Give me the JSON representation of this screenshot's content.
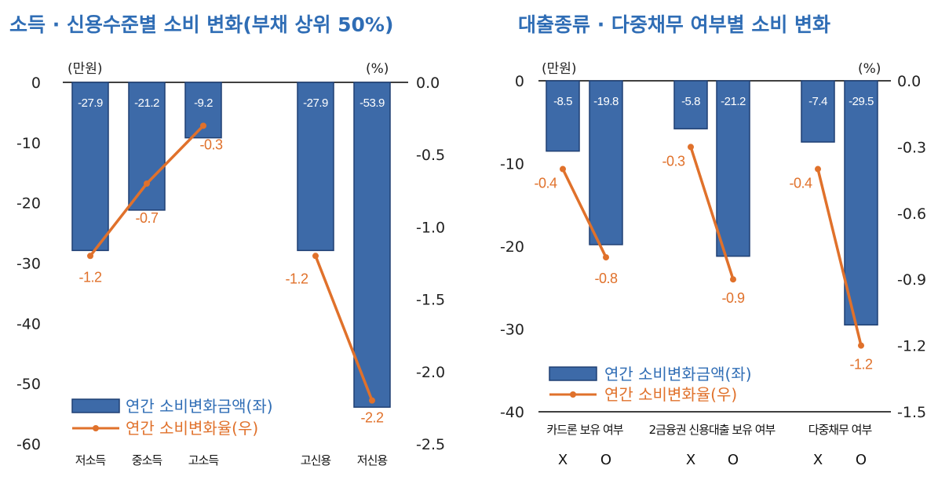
{
  "colors": {
    "bar": "#3d6aa8",
    "bar_stroke": "#1f3f73",
    "line": "#e0712b",
    "title": "#2f6db5"
  },
  "chart_data": [
    {
      "type": "bar+line",
      "title": "소득 · 신용수준별 소비 변화(부채 상위 50%)",
      "left_unit": "(만원)",
      "right_unit": "(%)",
      "left_ylim": [
        -60,
        0
      ],
      "left_ticks": [
        "0",
        "-10",
        "-20",
        "-30",
        "-40",
        "-50",
        "-60"
      ],
      "right_ylim": [
        -2.5,
        0.0
      ],
      "right_ticks": [
        "0.0",
        "-0.5",
        "-1.0",
        "-1.5",
        "-2.0",
        "-2.5"
      ],
      "categories": [
        "저소득",
        "중소득",
        "고소득",
        "고신용",
        "저신용"
      ],
      "series": [
        {
          "name": "연간 소비변화금액(좌)",
          "axis": "left",
          "values": [
            -27.9,
            -21.2,
            -9.2,
            -27.9,
            -53.9
          ],
          "labels": [
            "-27.9",
            "-21.2",
            "-9.2",
            "-27.9",
            "-53.9"
          ]
        },
        {
          "name": "연간 소비변화율(우)",
          "axis": "right",
          "values": [
            -1.2,
            -0.7,
            -0.3,
            -1.2,
            -2.2
          ],
          "labels": [
            "-1.2",
            "-0.7",
            "-0.3",
            "-1.2",
            "-2.2"
          ],
          "line_groups": [
            [
              0,
              1,
              2
            ],
            [
              3,
              4
            ]
          ]
        }
      ],
      "legend": "bottom-left"
    },
    {
      "type": "bar+line",
      "title": "대출종류 · 다중채무 여부별 소비 변화",
      "left_unit": "(만원)",
      "right_unit": "(%)",
      "left_ylim": [
        -40,
        0
      ],
      "left_ticks": [
        "0",
        "-10",
        "-20",
        "-30",
        "-40"
      ],
      "right_ylim": [
        -1.5,
        0.0
      ],
      "right_ticks": [
        "0.0",
        "-0.3",
        "-0.6",
        "-0.9",
        "-1.2",
        "-1.5"
      ],
      "groups": [
        "카드론 보유 여부",
        "2금융권 신용대출 보유 여부",
        "다중채무 여부"
      ],
      "categories": [
        "X",
        "O",
        "X",
        "O",
        "X",
        "O"
      ],
      "series": [
        {
          "name": "연간 소비변화금액(좌)",
          "axis": "left",
          "values": [
            -8.5,
            -19.8,
            -5.8,
            -21.2,
            -7.4,
            -29.5
          ],
          "labels": [
            "-8.5",
            "-19.8",
            "-5.8",
            "-21.2",
            "-7.4",
            "-29.5"
          ]
        },
        {
          "name": "연간 소비변화율(우)",
          "axis": "right",
          "values": [
            -0.4,
            -0.8,
            -0.3,
            -0.9,
            -0.4,
            -1.2
          ],
          "labels": [
            "-0.4",
            "-0.8",
            "-0.3",
            "-0.9",
            "-0.4",
            "-1.2"
          ],
          "line_groups": [
            [
              0,
              1
            ],
            [
              2,
              3
            ],
            [
              4,
              5
            ]
          ]
        }
      ],
      "legend": "bottom-left"
    }
  ]
}
